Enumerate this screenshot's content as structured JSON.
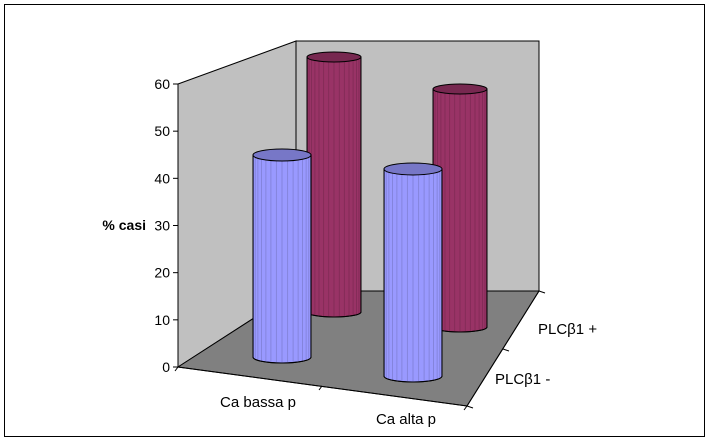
{
  "chart_data": {
    "type": "bar",
    "variant": "3d-cylinder",
    "categories": [
      "Ca bassa p",
      "Ca alta p"
    ],
    "series": [
      {
        "name": "PLCβ1 -",
        "values": [
          40,
          41
        ],
        "color": "#9999ff"
      },
      {
        "name": "PLCβ1 +",
        "values": [
          60,
          56
        ],
        "color": "#993366"
      }
    ],
    "ylabel": "% casi",
    "ylim": [
      0,
      60
    ],
    "yticks": [
      0,
      10,
      20,
      30,
      40,
      50,
      60
    ],
    "grid": false,
    "legend": "none",
    "wall_color": "#c0c0c0",
    "floor_color": "#808080"
  }
}
